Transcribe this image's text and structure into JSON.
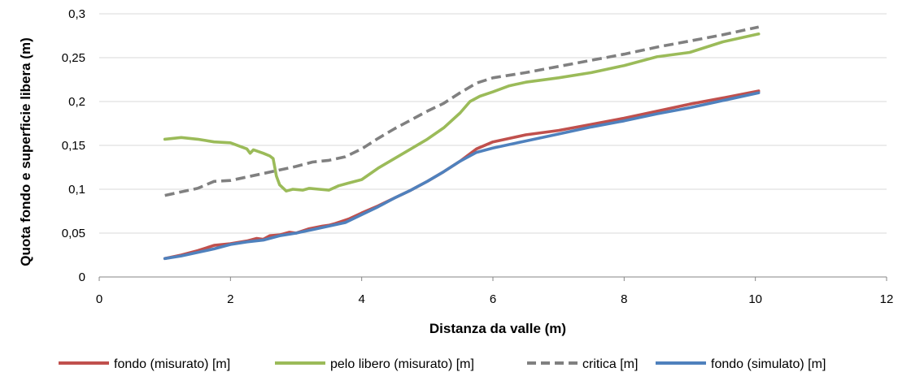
{
  "chart_data": {
    "type": "line",
    "title": "",
    "xlabel": "Distanza da valle (m)",
    "ylabel": "Quota fondo e superficie libera (m)",
    "xlim": [
      0,
      12
    ],
    "ylim": [
      0,
      0.3
    ],
    "xticks": [
      0,
      2,
      4,
      6,
      8,
      10,
      12
    ],
    "xtick_labels": [
      "0",
      "2",
      "4",
      "6",
      "8",
      "10",
      "12"
    ],
    "yticks": [
      0,
      0.05,
      0.1,
      0.15,
      0.2,
      0.25,
      0.3
    ],
    "ytick_labels": [
      "0",
      "0,05",
      "0,1",
      "0,15",
      "0,2",
      "0,25",
      "0,3"
    ],
    "grid": "horizontal",
    "legend_position": "bottom",
    "series": [
      {
        "name": "fondo (misurato) [m]",
        "color": "#C0504D",
        "style": "solid",
        "points": [
          [
            1.0,
            0.021
          ],
          [
            1.25,
            0.025
          ],
          [
            1.5,
            0.03
          ],
          [
            1.75,
            0.036
          ],
          [
            2.0,
            0.038
          ],
          [
            2.25,
            0.041
          ],
          [
            2.4,
            0.044
          ],
          [
            2.5,
            0.043
          ],
          [
            2.6,
            0.047
          ],
          [
            2.75,
            0.048
          ],
          [
            2.9,
            0.051
          ],
          [
            3.0,
            0.05
          ],
          [
            3.2,
            0.055
          ],
          [
            3.4,
            0.058
          ],
          [
            3.5,
            0.059
          ],
          [
            3.6,
            0.061
          ],
          [
            3.8,
            0.066
          ],
          [
            4.0,
            0.073
          ],
          [
            4.25,
            0.081
          ],
          [
            4.5,
            0.09
          ],
          [
            4.75,
            0.099
          ],
          [
            5.0,
            0.109
          ],
          [
            5.25,
            0.12
          ],
          [
            5.5,
            0.132
          ],
          [
            5.75,
            0.146
          ],
          [
            6.0,
            0.154
          ],
          [
            6.25,
            0.158
          ],
          [
            6.5,
            0.162
          ],
          [
            7.0,
            0.167
          ],
          [
            7.5,
            0.174
          ],
          [
            8.0,
            0.181
          ],
          [
            8.5,
            0.189
          ],
          [
            9.0,
            0.197
          ],
          [
            9.5,
            0.204
          ],
          [
            10.05,
            0.212
          ]
        ]
      },
      {
        "name": "pelo libero (misurato) [m]",
        "color": "#9BBB59",
        "style": "solid",
        "points": [
          [
            1.0,
            0.157
          ],
          [
            1.25,
            0.159
          ],
          [
            1.5,
            0.157
          ],
          [
            1.75,
            0.154
          ],
          [
            2.0,
            0.153
          ],
          [
            2.25,
            0.146
          ],
          [
            2.3,
            0.141
          ],
          [
            2.35,
            0.145
          ],
          [
            2.5,
            0.141
          ],
          [
            2.6,
            0.138
          ],
          [
            2.65,
            0.135
          ],
          [
            2.7,
            0.115
          ],
          [
            2.75,
            0.105
          ],
          [
            2.85,
            0.098
          ],
          [
            2.95,
            0.1
          ],
          [
            3.1,
            0.099
          ],
          [
            3.2,
            0.101
          ],
          [
            3.35,
            0.1
          ],
          [
            3.5,
            0.099
          ],
          [
            3.65,
            0.104
          ],
          [
            3.8,
            0.107
          ],
          [
            4.0,
            0.111
          ],
          [
            4.25,
            0.124
          ],
          [
            4.5,
            0.135
          ],
          [
            4.75,
            0.146
          ],
          [
            5.0,
            0.157
          ],
          [
            5.25,
            0.17
          ],
          [
            5.5,
            0.187
          ],
          [
            5.65,
            0.2
          ],
          [
            5.8,
            0.206
          ],
          [
            6.0,
            0.211
          ],
          [
            6.25,
            0.218
          ],
          [
            6.5,
            0.222
          ],
          [
            7.0,
            0.227
          ],
          [
            7.5,
            0.233
          ],
          [
            8.0,
            0.241
          ],
          [
            8.5,
            0.251
          ],
          [
            9.0,
            0.256
          ],
          [
            9.5,
            0.268
          ],
          [
            10.05,
            0.277
          ]
        ]
      },
      {
        "name": "critica [m]",
        "color": "#808080",
        "style": "dashed",
        "points": [
          [
            1.0,
            0.093
          ],
          [
            1.5,
            0.101
          ],
          [
            1.75,
            0.109
          ],
          [
            2.0,
            0.11
          ],
          [
            2.25,
            0.114
          ],
          [
            2.5,
            0.118
          ],
          [
            2.75,
            0.122
          ],
          [
            3.0,
            0.126
          ],
          [
            3.25,
            0.131
          ],
          [
            3.5,
            0.133
          ],
          [
            3.75,
            0.137
          ],
          [
            4.0,
            0.146
          ],
          [
            4.25,
            0.158
          ],
          [
            4.5,
            0.169
          ],
          [
            4.75,
            0.179
          ],
          [
            5.0,
            0.189
          ],
          [
            5.25,
            0.198
          ],
          [
            5.5,
            0.21
          ],
          [
            5.75,
            0.221
          ],
          [
            6.0,
            0.227
          ],
          [
            6.5,
            0.233
          ],
          [
            7.0,
            0.24
          ],
          [
            7.5,
            0.247
          ],
          [
            8.0,
            0.254
          ],
          [
            8.5,
            0.262
          ],
          [
            9.0,
            0.269
          ],
          [
            9.5,
            0.276
          ],
          [
            10.05,
            0.285
          ]
        ]
      },
      {
        "name": "fondo (simulato) [m]",
        "color": "#4F81BD",
        "style": "solid",
        "points": [
          [
            1.0,
            0.021
          ],
          [
            1.25,
            0.024
          ],
          [
            1.5,
            0.028
          ],
          [
            1.75,
            0.032
          ],
          [
            2.0,
            0.037
          ],
          [
            2.25,
            0.04
          ],
          [
            2.5,
            0.042
          ],
          [
            2.75,
            0.047
          ],
          [
            3.0,
            0.05
          ],
          [
            3.25,
            0.054
          ],
          [
            3.5,
            0.058
          ],
          [
            3.75,
            0.062
          ],
          [
            4.0,
            0.071
          ],
          [
            4.25,
            0.08
          ],
          [
            4.5,
            0.09
          ],
          [
            4.75,
            0.099
          ],
          [
            5.0,
            0.109
          ],
          [
            5.25,
            0.12
          ],
          [
            5.5,
            0.132
          ],
          [
            5.75,
            0.142
          ],
          [
            6.0,
            0.147
          ],
          [
            6.5,
            0.155
          ],
          [
            7.0,
            0.163
          ],
          [
            7.5,
            0.171
          ],
          [
            8.0,
            0.178
          ],
          [
            8.5,
            0.186
          ],
          [
            9.0,
            0.193
          ],
          [
            9.5,
            0.201
          ],
          [
            10.05,
            0.21
          ]
        ]
      }
    ]
  }
}
